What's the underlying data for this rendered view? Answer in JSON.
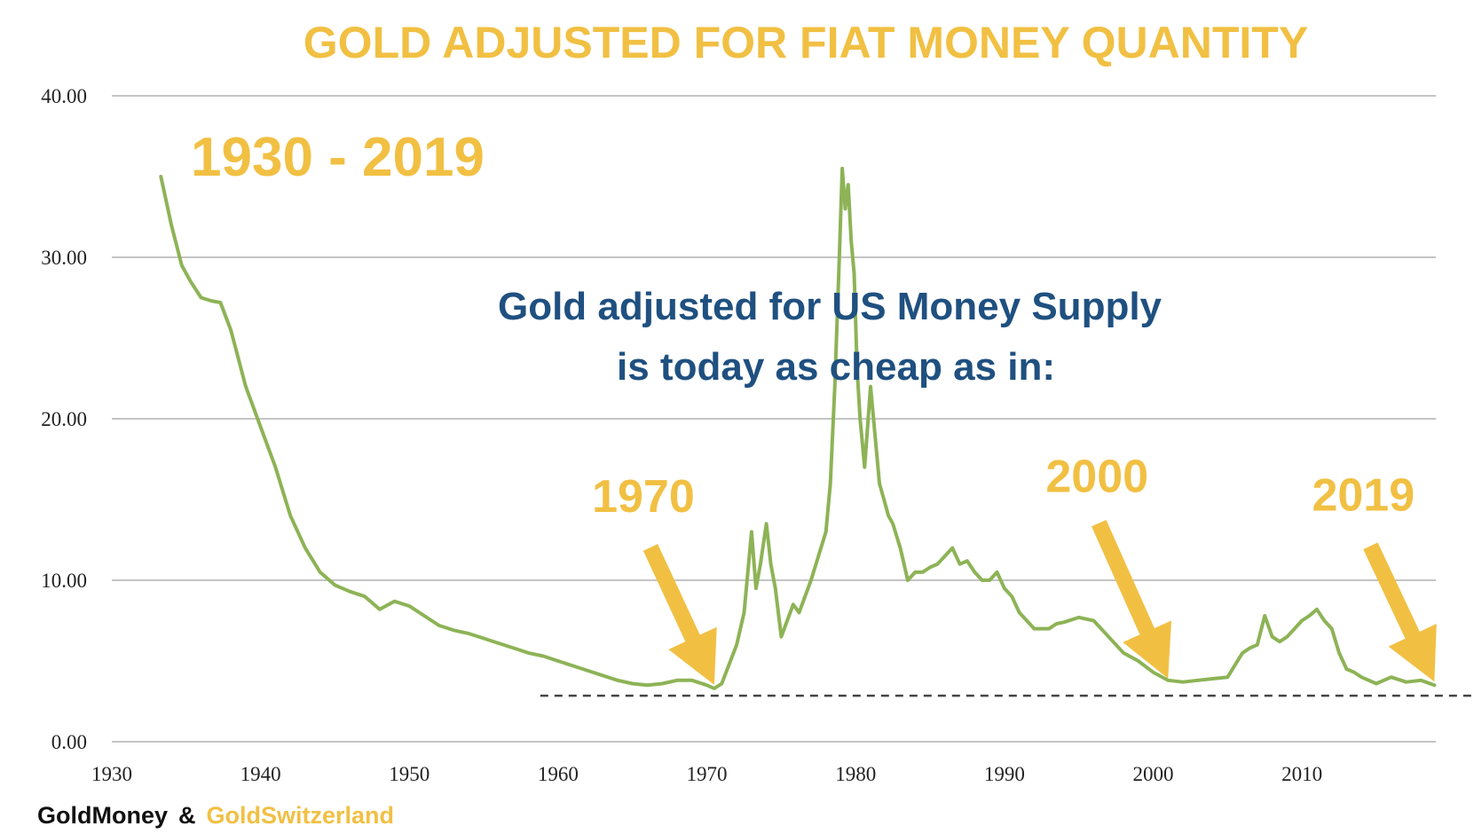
{
  "colors": {
    "accent": "#f1c043",
    "message": "#1f5080",
    "line": "#8db356",
    "grid": "#c4c4c4",
    "baseline": "#444444"
  },
  "chart_data": {
    "type": "line",
    "title": "GOLD ADJUSTED FOR FIAT MONEY QUANTITY",
    "range_label": "1930 - 2019",
    "message_lines": [
      "Gold adjusted for US Money Supply",
      "is today as cheap as in:"
    ],
    "xlabel": "",
    "ylabel": "",
    "xlim": [
      1930,
      2019
    ],
    "ylim": [
      0,
      40
    ],
    "x_ticks": [
      1930,
      1940,
      1950,
      1960,
      1970,
      1980,
      1990,
      2000,
      2010
    ],
    "x_tick_labels": [
      "1930",
      "1940",
      "1950",
      "1960",
      "1970",
      "1980",
      "1990",
      "2000",
      "2010"
    ],
    "y_ticks": [
      0,
      10,
      20,
      30,
      40
    ],
    "y_tick_labels": [
      "0.00",
      "10.00",
      "20.00",
      "30.00",
      "40.00"
    ],
    "grid": true,
    "reference_line": {
      "value": 2.85,
      "from_x": 1958.8,
      "style": "dashed"
    },
    "annotations": [
      {
        "label": "1970",
        "point_to": [
          1970.5,
          3.3
        ]
      },
      {
        "label": "2000",
        "point_to": [
          2001.0,
          3.7
        ]
      },
      {
        "label": "2019",
        "point_to": [
          2018.9,
          3.5
        ]
      }
    ],
    "series": [
      {
        "name": "Gold adjusted for US Money Supply",
        "x": [
          1933.3,
          1934.0,
          1934.7,
          1935.3,
          1936.0,
          1936.7,
          1937.3,
          1938.0,
          1939.0,
          1940.0,
          1941.0,
          1942.0,
          1943.0,
          1944.0,
          1945.0,
          1946.0,
          1947.0,
          1948.0,
          1949.0,
          1950.0,
          1951.0,
          1952.0,
          1953.0,
          1954.0,
          1955.0,
          1956.0,
          1957.0,
          1958.0,
          1959.0,
          1960.0,
          1961.0,
          1962.0,
          1963.0,
          1964.0,
          1965.0,
          1966.0,
          1967.0,
          1968.0,
          1969.0,
          1970.0,
          1970.5,
          1971.0,
          1971.5,
          1972.0,
          1972.5,
          1973.0,
          1973.3,
          1973.6,
          1974.0,
          1974.3,
          1974.6,
          1975.0,
          1975.4,
          1975.8,
          1976.2,
          1976.6,
          1977.0,
          1977.5,
          1978.0,
          1978.3,
          1978.6,
          1978.9,
          1979.1,
          1979.3,
          1979.5,
          1979.7,
          1979.9,
          1980.1,
          1980.3,
          1980.6,
          1981.0,
          1981.3,
          1981.6,
          1981.9,
          1982.2,
          1982.5,
          1983.0,
          1983.5,
          1984.0,
          1984.5,
          1985.0,
          1985.5,
          1986.0,
          1986.5,
          1987.0,
          1987.5,
          1988.0,
          1988.5,
          1989.0,
          1989.5,
          1990.0,
          1990.5,
          1991.0,
          1992.0,
          1993.0,
          1993.5,
          1994.0,
          1995.0,
          1996.0,
          1997.0,
          1998.0,
          1999.0,
          2000.0,
          2001.0,
          2002.0,
          2003.0,
          2004.0,
          2005.0,
          2006.0,
          2006.5,
          2007.0,
          2007.5,
          2008.0,
          2008.5,
          2009.0,
          2010.0,
          2010.5,
          2011.0,
          2011.5,
          2012.0,
          2012.5,
          2013.0,
          2013.5,
          2014.0,
          2015.0,
          2015.5,
          2016.0,
          2017.0,
          2018.0,
          2018.9
        ],
        "values": [
          35.0,
          32.0,
          29.5,
          28.5,
          27.5,
          27.3,
          27.2,
          25.5,
          22.0,
          19.5,
          17.0,
          14.0,
          12.0,
          10.5,
          9.7,
          9.3,
          9.0,
          8.2,
          8.7,
          8.4,
          7.8,
          7.2,
          6.9,
          6.7,
          6.4,
          6.1,
          5.8,
          5.5,
          5.3,
          5.0,
          4.7,
          4.4,
          4.1,
          3.8,
          3.6,
          3.5,
          3.6,
          3.8,
          3.8,
          3.5,
          3.3,
          3.6,
          4.8,
          6.0,
          8.0,
          13.0,
          9.5,
          11.0,
          13.5,
          11.0,
          9.5,
          6.5,
          7.5,
          8.5,
          8.0,
          9.0,
          10.0,
          11.5,
          13.0,
          16.0,
          22.0,
          30.0,
          35.5,
          33.0,
          34.5,
          31.0,
          29.0,
          23.0,
          20.0,
          17.0,
          22.0,
          19.0,
          16.0,
          15.0,
          14.0,
          13.5,
          12.0,
          10.0,
          10.5,
          10.5,
          10.8,
          11.0,
          11.5,
          12.0,
          11.0,
          11.2,
          10.5,
          10.0,
          10.0,
          10.5,
          9.5,
          9.0,
          8.0,
          7.0,
          7.0,
          7.3,
          7.4,
          7.7,
          7.5,
          6.5,
          5.5,
          5.0,
          4.3,
          3.8,
          3.7,
          3.8,
          3.9,
          4.0,
          5.5,
          5.8,
          6.0,
          7.8,
          6.5,
          6.2,
          6.5,
          7.5,
          7.8,
          8.2,
          7.5,
          7.0,
          5.5,
          4.5,
          4.3,
          4.0,
          3.6,
          3.8,
          4.0,
          3.7,
          3.8,
          3.5
        ]
      }
    ]
  },
  "footer": {
    "left": "GoldMoney",
    "amp": "&",
    "right": "GoldSwitzerland"
  }
}
